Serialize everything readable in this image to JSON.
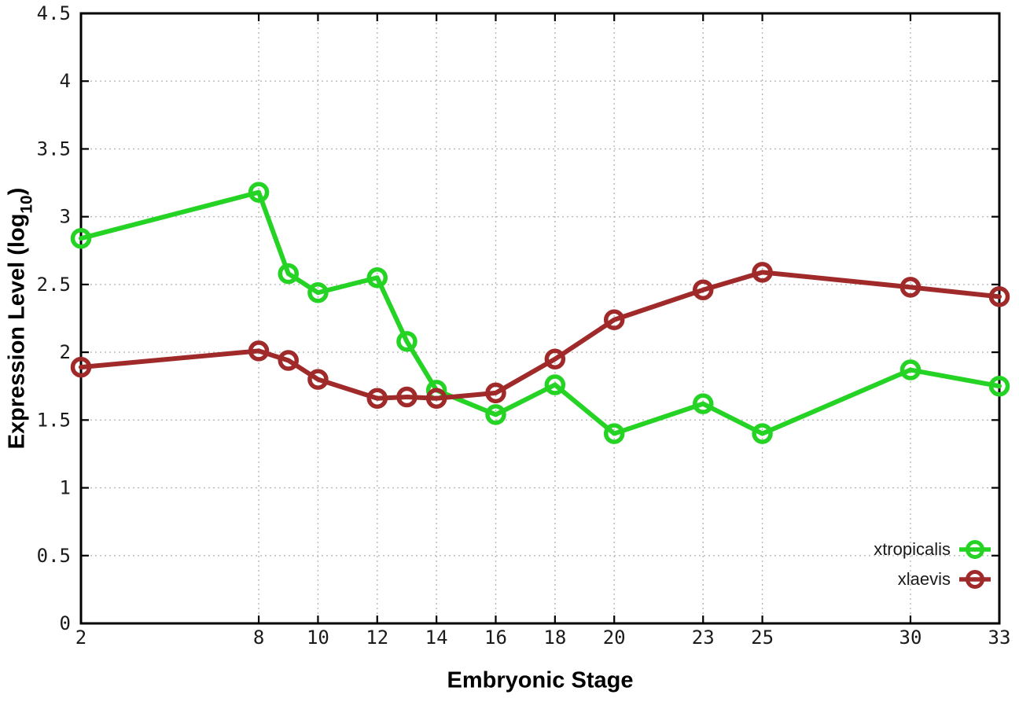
{
  "chart_data": {
    "type": "line",
    "title": "",
    "xlabel": "Embryonic Stage",
    "ylabel": "Expression Level (log10)",
    "ylabel_parts": {
      "main": "Expression Level (log",
      "sub": "10",
      "end": ")"
    },
    "xlim": [
      2,
      33
    ],
    "ylim": [
      0,
      4.5
    ],
    "x_ticks": [
      2,
      8,
      10,
      12,
      14,
      16,
      18,
      20,
      23,
      25,
      30,
      33
    ],
    "y_ticks": [
      0,
      0.5,
      1,
      1.5,
      2,
      2.5,
      3,
      3.5,
      4,
      4.5
    ],
    "grid": true,
    "legend_position": "inside-bottom-right",
    "x": [
      2,
      8,
      9,
      10,
      12,
      13,
      14,
      16,
      18,
      20,
      23,
      25,
      30,
      33
    ],
    "series": [
      {
        "name": "xtropicalis",
        "color": "#24d324",
        "values": [
          2.84,
          3.18,
          2.58,
          2.44,
          2.55,
          2.08,
          1.72,
          1.54,
          1.76,
          1.4,
          1.62,
          1.4,
          1.87,
          1.75
        ]
      },
      {
        "name": "xlaevis",
        "color": "#a02a2a",
        "values": [
          1.89,
          2.01,
          1.94,
          1.8,
          1.66,
          1.67,
          1.66,
          1.7,
          1.95,
          2.24,
          2.46,
          2.59,
          2.48,
          2.41
        ]
      }
    ],
    "colors": {
      "grid": "#b8b8b8",
      "border": "#000000",
      "tick_label": "#1a1a1a"
    }
  }
}
